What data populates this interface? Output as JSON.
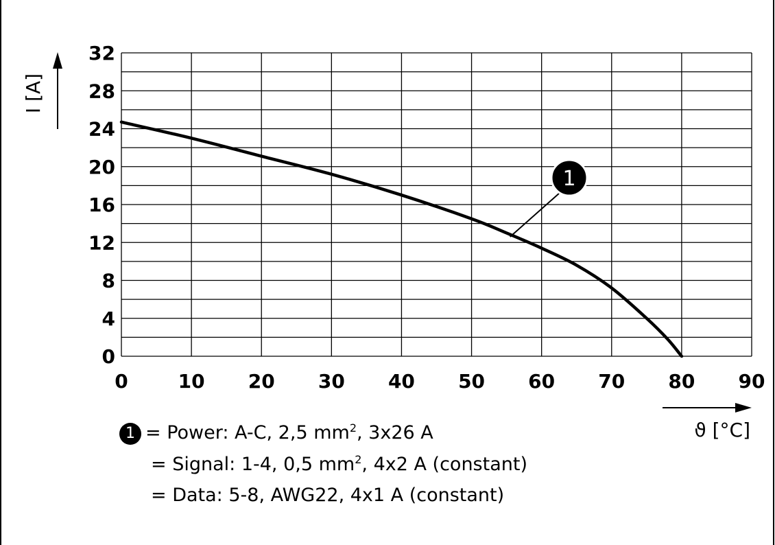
{
  "chart_data": {
    "type": "line",
    "xlabel": "ϑ [°C]",
    "ylabel": "I [A]",
    "xlim": [
      0,
      90
    ],
    "ylim": [
      0,
      32
    ],
    "x_ticks": [
      0,
      10,
      20,
      30,
      40,
      50,
      60,
      70,
      80,
      90
    ],
    "y_ticks": [
      0,
      4,
      8,
      12,
      16,
      20,
      24,
      28,
      32
    ],
    "grid": true,
    "series": [
      {
        "marker": "1",
        "x": [
          0,
          10,
          20,
          30,
          40,
          50,
          55,
          60,
          65,
          70,
          75,
          78,
          80
        ],
        "y": [
          24.7,
          23.0,
          21.1,
          19.2,
          17.0,
          14.5,
          13.0,
          11.4,
          9.6,
          7.2,
          4.0,
          1.8,
          0
        ]
      }
    ],
    "annotation": {
      "label": "1",
      "x": 55.5,
      "y": 12.6
    }
  },
  "legend": [
    {
      "badge": "1",
      "prefix": "= Power: A-C, 2,5 mm",
      "sup": "2",
      "suffix": ", 3x26 A"
    },
    {
      "badge": "",
      "prefix": "= Signal: 1-4, 0,5 mm",
      "sup": "2",
      "suffix": ", 4x2 A (constant)"
    },
    {
      "badge": "",
      "prefix": "= Data: 5-8, AWG22, 4x1 A (constant)",
      "sup": "",
      "suffix": ""
    }
  ]
}
